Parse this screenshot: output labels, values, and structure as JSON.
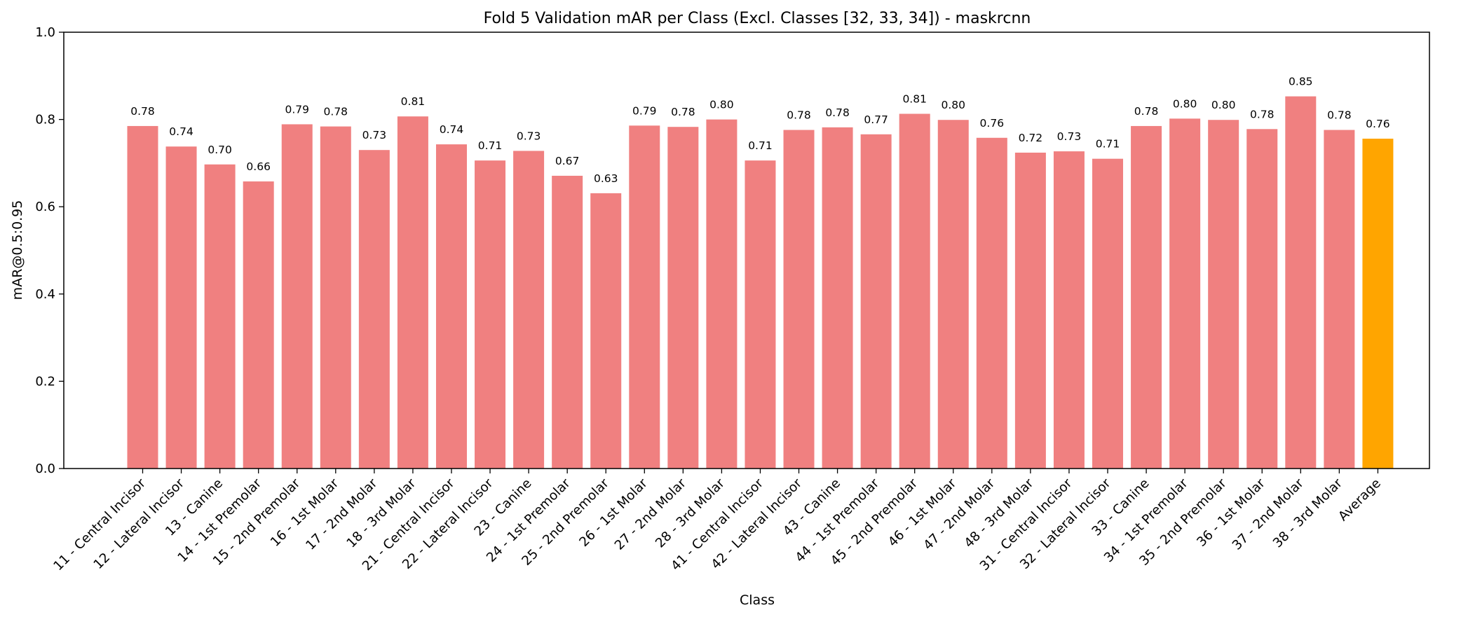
{
  "chart_data": {
    "type": "bar",
    "title": "Fold 5 Validation mAR per Class (Excl. Classes [32, 33, 34]) - maskrcnn",
    "xlabel": "Class",
    "ylabel": "mAR@0.5:0.95",
    "ylim": [
      0,
      1.0
    ],
    "yticks": [
      "0.0",
      "0.2",
      "0.4",
      "0.6",
      "0.8",
      "1.0"
    ],
    "grid": false,
    "bar_color": "#f08080",
    "highlight_color": "#ffa500",
    "highlight_category": "Average",
    "categories": [
      "11 - Central Incisor",
      "12 - Lateral Incisor",
      "13 - Canine",
      "14 - 1st Premolar",
      "15 - 2nd Premolar",
      "16 - 1st Molar",
      "17 - 2nd Molar",
      "18 - 3rd Molar",
      "21 - Central Incisor",
      "22 - Lateral Incisor",
      "23 - Canine",
      "24 - 1st Premolar",
      "25 - 2nd Premolar",
      "26 - 1st Molar",
      "27 - 2nd Molar",
      "28 - 3rd Molar",
      "41 - Central Incisor",
      "42 - Lateral Incisor",
      "43 - Canine",
      "44 - 1st Premolar",
      "45 - 2nd Premolar",
      "46 - 1st Molar",
      "47 - 2nd Molar",
      "48 - 3rd Molar",
      "31 - Central Incisor",
      "32 - Lateral Incisor",
      "33 - Canine",
      "34 - 1st Premolar",
      "35 - 2nd Premolar",
      "36 - 1st Molar",
      "37 - 2nd Molar",
      "38 - 3rd Molar",
      "Average"
    ],
    "values": [
      0.785,
      0.738,
      0.697,
      0.658,
      0.789,
      0.784,
      0.73,
      0.807,
      0.743,
      0.706,
      0.728,
      0.671,
      0.631,
      0.786,
      0.783,
      0.8,
      0.706,
      0.776,
      0.782,
      0.766,
      0.813,
      0.799,
      0.758,
      0.724,
      0.727,
      0.71,
      0.785,
      0.802,
      0.799,
      0.778,
      0.853,
      0.776,
      0.756
    ],
    "value_labels": [
      "0.78",
      "0.74",
      "0.70",
      "0.66",
      "0.79",
      "0.78",
      "0.73",
      "0.81",
      "0.74",
      "0.71",
      "0.73",
      "0.67",
      "0.63",
      "0.79",
      "0.78",
      "0.80",
      "0.71",
      "0.78",
      "0.78",
      "0.77",
      "0.81",
      "0.80",
      "0.76",
      "0.72",
      "0.73",
      "0.71",
      "0.78",
      "0.80",
      "0.80",
      "0.78",
      "0.85",
      "0.78",
      "0.76"
    ]
  }
}
